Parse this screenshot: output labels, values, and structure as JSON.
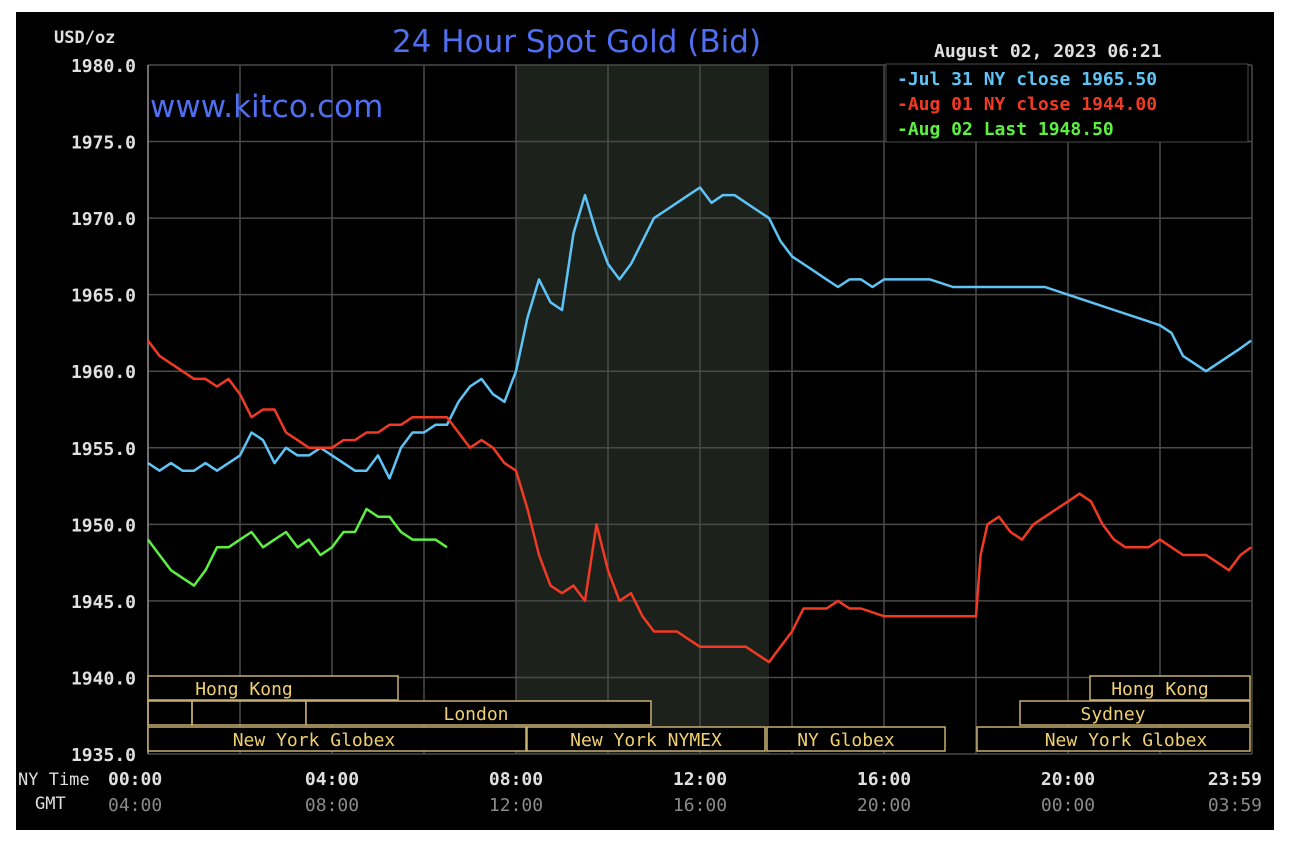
{
  "header": {
    "unit": "USD/oz",
    "title": "24 Hour Spot Gold (Bid)",
    "timestamp": "August 02, 2023 06:21",
    "watermark": "www.kitco.com"
  },
  "legend": [
    {
      "label": "-Jul 31 NY close 1965.50",
      "color": "#5ec4f5"
    },
    {
      "label": "-Aug 01 NY close 1944.00",
      "color": "#f03a24"
    },
    {
      "label": "-Aug 02 Last 1948.50",
      "color": "#5ef040"
    }
  ],
  "time_rows": {
    "ny_label": "NY Time",
    "gmt_label": "GMT",
    "ny_ticks": [
      "00:00",
      "04:00",
      "08:00",
      "12:00",
      "16:00",
      "20:00",
      "23:59"
    ],
    "gmt_ticks": [
      "04:00",
      "08:00",
      "12:00",
      "16:00",
      "20:00",
      "00:00",
      "03:59"
    ]
  },
  "markets": [
    {
      "label": "Hong Kong",
      "row": 0
    },
    {
      "label": "London",
      "row": 1
    },
    {
      "label": "New York Globex",
      "row": 2
    },
    {
      "label": "New York NYMEX",
      "row": 2
    },
    {
      "label": "NY Globex",
      "row": 2
    },
    {
      "label": "Hong Kong",
      "row": 0
    },
    {
      "label": "Sydney",
      "row": 1
    },
    {
      "label": "New York Globex",
      "row": 2
    }
  ],
  "colors": {
    "background": "#000000",
    "grid": "#4a4a4a",
    "axis_text": "#e0e0e0",
    "gmt_text": "#8a8a8a",
    "title": "#4f6ff0",
    "watermark": "#4f6ff0",
    "session_shade": "#1c211c",
    "market_box": "#c8b070",
    "market_text": "#f0d070"
  },
  "chart_data": {
    "type": "line",
    "title": "24 Hour Spot Gold (Bid)",
    "ylabel": "USD/oz",
    "xlabel": "NY Time",
    "ylim": [
      1935,
      1980
    ],
    "yticks": [
      "1980.0",
      "1975.0",
      "1970.0",
      "1965.0",
      "1960.0",
      "1955.0",
      "1950.0",
      "1945.0",
      "1940.0",
      "1935.0"
    ],
    "xlim_hours": [
      0,
      24
    ],
    "grid": true,
    "shaded_session_hours": [
      8.0,
      13.5
    ],
    "legend_position": "top-right",
    "series": [
      {
        "name": "Jul 31 NY close 1965.50",
        "color": "#5ec4f5",
        "x": [
          0,
          0.25,
          0.5,
          0.75,
          1,
          1.25,
          1.5,
          1.75,
          2,
          2.25,
          2.5,
          2.75,
          3,
          3.25,
          3.5,
          3.75,
          4,
          4.25,
          4.5,
          4.75,
          5,
          5.25,
          5.5,
          5.75,
          6,
          6.25,
          6.5,
          6.75,
          7,
          7.25,
          7.5,
          7.75,
          8,
          8.25,
          8.5,
          8.75,
          9,
          9.25,
          9.5,
          9.75,
          10,
          10.25,
          10.5,
          10.75,
          11,
          11.25,
          11.5,
          11.75,
          12,
          12.25,
          12.5,
          12.75,
          13,
          13.25,
          13.5,
          13.75,
          14,
          14.25,
          14.5,
          14.75,
          15,
          15.25,
          15.5,
          15.75,
          16,
          16.5,
          17,
          17.5,
          18,
          18.5,
          19,
          19.5,
          20,
          20.5,
          21,
          21.5,
          22,
          22.25,
          22.5,
          22.75,
          23,
          23.25,
          23.5,
          23.75,
          23.98
        ],
        "y": [
          1954,
          1953.5,
          1954,
          1953.5,
          1953.5,
          1954,
          1953.5,
          1954,
          1954.5,
          1956,
          1955.5,
          1954,
          1955,
          1954.5,
          1954.5,
          1955,
          1954.5,
          1954,
          1953.5,
          1953.5,
          1954.5,
          1953,
          1955,
          1956,
          1956,
          1956.5,
          1956.5,
          1958,
          1959,
          1959.5,
          1958.5,
          1958,
          1960,
          1963.5,
          1966,
          1964.5,
          1964,
          1969,
          1971.5,
          1969,
          1967,
          1966,
          1967,
          1968.5,
          1970,
          1970.5,
          1971,
          1971.5,
          1972,
          1971,
          1971.5,
          1971.5,
          1971,
          1970.5,
          1970,
          1968.5,
          1967.5,
          1967,
          1966.5,
          1966,
          1965.5,
          1966,
          1966,
          1965.5,
          1966,
          1966,
          1966,
          1965.5,
          1965.5,
          1965.5,
          1965.5,
          1965.5,
          1965,
          1964.5,
          1964,
          1963.5,
          1963,
          1962.5,
          1961,
          1960.5,
          1960,
          1960.5,
          1961,
          1961.5,
          1962
        ]
      },
      {
        "name": "Aug 01 NY close 1944.00",
        "color": "#f03a24",
        "x": [
          0,
          0.25,
          0.5,
          0.75,
          1,
          1.25,
          1.5,
          1.75,
          2,
          2.25,
          2.5,
          2.75,
          3,
          3.25,
          3.5,
          3.75,
          4,
          4.25,
          4.5,
          4.75,
          5,
          5.25,
          5.5,
          5.75,
          6,
          6.25,
          6.5,
          6.75,
          7,
          7.25,
          7.5,
          7.75,
          8,
          8.25,
          8.5,
          8.75,
          9,
          9.25,
          9.5,
          9.75,
          10,
          10.25,
          10.5,
          10.75,
          11,
          11.25,
          11.5,
          11.75,
          12,
          12.25,
          12.5,
          12.75,
          13,
          13.25,
          13.5,
          13.75,
          14,
          14.25,
          14.5,
          14.75,
          15,
          15.25,
          15.5,
          16,
          16.5,
          17,
          17.5,
          17.75,
          18,
          18.1,
          18.25,
          18.5,
          18.75,
          19,
          19.25,
          19.5,
          19.75,
          20,
          20.25,
          20.5,
          20.75,
          21,
          21.25,
          21.5,
          21.75,
          22,
          22.25,
          22.5,
          22.75,
          23,
          23.25,
          23.5,
          23.75,
          23.98
        ],
        "y": [
          1962,
          1961,
          1960.5,
          1960,
          1959.5,
          1959.5,
          1959,
          1959.5,
          1958.5,
          1957,
          1957.5,
          1957.5,
          1956,
          1955.5,
          1955,
          1955,
          1955,
          1955.5,
          1955.5,
          1956,
          1956,
          1956.5,
          1956.5,
          1957,
          1957,
          1957,
          1957,
          1956,
          1955,
          1955.5,
          1955,
          1954,
          1953.5,
          1951,
          1948,
          1946,
          1945.5,
          1946,
          1945,
          1950,
          1947,
          1945,
          1945.5,
          1944,
          1943,
          1943,
          1943,
          1942.5,
          1942,
          1942,
          1942,
          1942,
          1942,
          1941.5,
          1941,
          1942,
          1943,
          1944.5,
          1944.5,
          1944.5,
          1945,
          1944.5,
          1944.5,
          1944,
          1944,
          1944,
          1944,
          1944,
          1944,
          1948,
          1950,
          1950.5,
          1949.5,
          1949,
          1950,
          1950.5,
          1951,
          1951.5,
          1952,
          1951.5,
          1950,
          1949,
          1948.5,
          1948.5,
          1948.5,
          1949,
          1948.5,
          1948,
          1948,
          1948,
          1947.5,
          1947,
          1948,
          1948.5
        ]
      },
      {
        "name": "Aug 02 Last 1948.50",
        "color": "#5ef040",
        "x": [
          0,
          0.25,
          0.5,
          0.75,
          1,
          1.25,
          1.5,
          1.75,
          2,
          2.25,
          2.5,
          2.75,
          3,
          3.25,
          3.5,
          3.75,
          4,
          4.25,
          4.5,
          4.75,
          5,
          5.25,
          5.5,
          5.75,
          6,
          6.25,
          6.5
        ],
        "y": [
          1949,
          1948,
          1947,
          1946.5,
          1946,
          1947,
          1948.5,
          1948.5,
          1949,
          1949.5,
          1948.5,
          1949,
          1949.5,
          1948.5,
          1949,
          1948,
          1948.5,
          1949.5,
          1949.5,
          1951,
          1950.5,
          1950.5,
          1949.5,
          1949,
          1949,
          1949,
          1948.5
        ]
      }
    ]
  }
}
